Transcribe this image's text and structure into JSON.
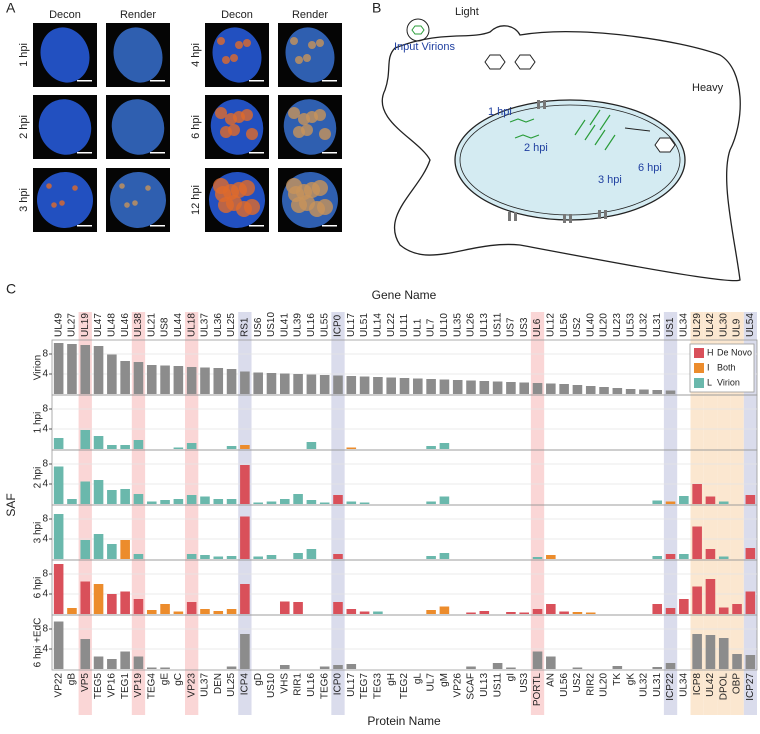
{
  "panels": {
    "a": {
      "label": "A",
      "columns": [
        "Decon",
        "Render",
        "Decon",
        "Render"
      ],
      "rows_left": [
        "1 hpi",
        "2 hpi",
        "3 hpi"
      ],
      "rows_right": [
        "4 hpi",
        "6 hpi",
        "12 hpi"
      ]
    },
    "b": {
      "label": "B",
      "light": "Light",
      "input": "Input Virions",
      "heavy": "Heavy",
      "stages": [
        "1 hpi",
        "2 hpi",
        "3 hpi",
        "6 hpi"
      ]
    }
  },
  "chart_data": {
    "type": "bar",
    "panel_label": "C",
    "top_axis_label": "Gene Name",
    "xlabel": "Protein Name",
    "ylabel": "SAF",
    "genes": [
      "UL49",
      "UL27",
      "UL19",
      "UL47",
      "UL48",
      "UL46",
      "UL38",
      "UL21",
      "US8",
      "UL44",
      "UL18",
      "UL37",
      "UL36",
      "UL25",
      "RS1",
      "US6",
      "US10",
      "UL41",
      "UL39",
      "UL16",
      "UL55",
      "ICP0",
      "UL17",
      "UL51",
      "UL14",
      "UL22",
      "UL11",
      "UL1",
      "UL7",
      "UL10",
      "UL35",
      "UL26",
      "UL13",
      "US11",
      "US7",
      "US3",
      "UL6",
      "UL12",
      "UL56",
      "US2",
      "UL40",
      "UL20",
      "UL23",
      "UL53",
      "UL32",
      "UL31",
      "US1",
      "UL34",
      "UL29",
      "UL42",
      "UL30",
      "UL9",
      "UL54"
    ],
    "categories": [
      "VP22",
      "gB",
      "VP5",
      "TEG5",
      "VP16",
      "TEG1",
      "VP19",
      "TEG4",
      "gE",
      "gC",
      "VP23",
      "UL37",
      "DEN",
      "UL25",
      "ICP4",
      "gD",
      "US10",
      "VHS",
      "RIR1",
      "UL16",
      "TEG6",
      "ICP0",
      "UL17",
      "TEG7",
      "TEG3",
      "gH",
      "TEG2",
      "gL",
      "UL7",
      "gM",
      "VP26",
      "SCAF",
      "UL13",
      "US11",
      "gI",
      "US3",
      "PORTL",
      "AN",
      "UL56",
      "US2",
      "RIR2",
      "UL20",
      "TK",
      "gK",
      "UL32",
      "UL31",
      "ICP22",
      "UL34",
      "ICP8",
      "UL42",
      "DPOL",
      "OBP",
      "ICP27"
    ],
    "ylim": [
      0,
      10.6
    ],
    "yticks": [
      4,
      8
    ],
    "grid": true,
    "legend": {
      "position": "upper right",
      "entries": [
        {
          "key": "H",
          "name": "De Novo",
          "color": "#d9505a"
        },
        {
          "key": "I",
          "name": "Both",
          "color": "#ec8c2c"
        },
        {
          "key": "L",
          "name": "Virion",
          "color": "#6ab8ac"
        }
      ]
    },
    "highlights": [
      {
        "color": "#fad6d6",
        "columns": [
          2,
          6,
          10,
          36
        ]
      },
      {
        "color": "#dadcec",
        "columns": [
          14,
          21,
          46,
          52
        ]
      },
      {
        "color": "#fbe7d0",
        "columns": [
          48,
          49,
          50,
          51
        ]
      }
    ],
    "rows": [
      {
        "name": "Virion",
        "color": "#8c8c8c",
        "values": [
          10.2,
          10,
          9.8,
          9.6,
          7.9,
          6.6,
          6.4,
          5.8,
          5.7,
          5.6,
          5.4,
          5.3,
          5.2,
          5,
          4.5,
          4.3,
          4.2,
          4.1,
          4,
          3.9,
          3.8,
          3.7,
          3.6,
          3.5,
          3.4,
          3.3,
          3.2,
          3.1,
          3,
          2.9,
          2.8,
          2.7,
          2.6,
          2.5,
          2.4,
          2.3,
          2.2,
          2.1,
          2,
          1.8,
          1.6,
          1.4,
          1.2,
          1,
          0.9,
          0.8,
          0.7,
          0,
          0,
          0,
          0,
          0,
          0
        ]
      },
      {
        "name": "1 hpi",
        "values": [
          2.2,
          0,
          3.8,
          2.6,
          0.8,
          0.8,
          1.8,
          0,
          0,
          0.3,
          1.2,
          0,
          0,
          0.6,
          0.8,
          0,
          0,
          0,
          0,
          1.4,
          0,
          0,
          0.3,
          0,
          0,
          0,
          0,
          0,
          0.6,
          1.2,
          0,
          0,
          0,
          0,
          0,
          0,
          0,
          0,
          0,
          0,
          0,
          0,
          0,
          0,
          0,
          0,
          0,
          0,
          0,
          0,
          0,
          0,
          0
        ],
        "classes": [
          "L",
          "L",
          "L",
          "L",
          "L",
          "L",
          "L",
          "L",
          "L",
          "L",
          "L",
          "L",
          "L",
          "L",
          "I",
          "L",
          "L",
          "L",
          "L",
          "L",
          "L",
          "L",
          "I",
          "L",
          "L",
          "L",
          "L",
          "L",
          "L",
          "L",
          "L",
          "L",
          "L",
          "L",
          "L",
          "L",
          "L",
          "L",
          "L",
          "L",
          "L",
          "L",
          "L",
          "L",
          "L",
          "L",
          "L",
          "L",
          "L",
          "L",
          "L",
          "L",
          "L"
        ]
      },
      {
        "name": "2 hpi",
        "values": [
          7.5,
          1,
          4.5,
          4.8,
          2.8,
          3,
          2,
          0.5,
          0.8,
          1,
          1.8,
          1.5,
          1,
          1,
          7.8,
          0.3,
          0.5,
          1,
          2,
          0.8,
          0.3,
          1.8,
          0.5,
          0.3,
          0,
          0,
          0,
          0,
          0.5,
          1.5,
          0,
          0,
          0,
          0,
          0,
          0,
          0,
          0,
          0,
          0,
          0,
          0,
          0,
          0,
          0,
          0.7,
          0.5,
          1.6,
          4,
          1.5,
          0.5,
          0,
          1.8
        ],
        "classes": [
          "L",
          "L",
          "L",
          "L",
          "L",
          "L",
          "L",
          "L",
          "L",
          "L",
          "L",
          "L",
          "L",
          "L",
          "H",
          "L",
          "L",
          "L",
          "L",
          "L",
          "L",
          "H",
          "L",
          "L",
          "L",
          "L",
          "L",
          "L",
          "L",
          "L",
          "L",
          "L",
          "L",
          "L",
          "L",
          "L",
          "L",
          "L",
          "L",
          "L",
          "L",
          "L",
          "L",
          "L",
          "L",
          "L",
          "I",
          "L",
          "H",
          "H",
          "L",
          "L",
          "H"
        ]
      },
      {
        "name": "3 hpi",
        "values": [
          9,
          0,
          3.8,
          5,
          3,
          3.8,
          1,
          0,
          0,
          0,
          1,
          0.8,
          0.5,
          0.6,
          8.5,
          0.5,
          0.8,
          0,
          1.2,
          2,
          0,
          1,
          0,
          0,
          0,
          0,
          0,
          0,
          0.6,
          1.2,
          0,
          0,
          0,
          0,
          0,
          0,
          0.4,
          0.8,
          0,
          0,
          0,
          0,
          0,
          0,
          0,
          0.6,
          1,
          1,
          6.5,
          2,
          0.5,
          0,
          2.2
        ],
        "classes": [
          "L",
          "L",
          "L",
          "L",
          "L",
          "I",
          "L",
          "L",
          "L",
          "L",
          "L",
          "L",
          "L",
          "L",
          "H",
          "L",
          "L",
          "L",
          "L",
          "L",
          "L",
          "H",
          "L",
          "L",
          "L",
          "L",
          "L",
          "L",
          "L",
          "L",
          "L",
          "L",
          "L",
          "L",
          "L",
          "L",
          "L",
          "I",
          "L",
          "L",
          "L",
          "L",
          "L",
          "L",
          "L",
          "L",
          "H",
          "L",
          "H",
          "H",
          "L",
          "L",
          "H"
        ]
      },
      {
        "name": "6 hpi",
        "values": [
          10,
          1.2,
          6.5,
          6,
          4,
          4.5,
          3,
          0.8,
          2,
          0.5,
          2.4,
          1,
          0.6,
          1,
          6,
          0,
          0,
          2.5,
          2.4,
          0,
          0,
          2.4,
          1,
          0.5,
          0.5,
          0,
          0,
          0,
          0.8,
          1.5,
          0,
          0.3,
          0.6,
          0,
          0.4,
          0.3,
          1,
          2,
          0.5,
          0.4,
          0.3,
          0,
          0,
          0,
          0,
          2,
          1.2,
          3,
          5.5,
          7,
          1.3,
          2,
          4.5
        ],
        "classes": [
          "H",
          "I",
          "H",
          "I",
          "H",
          "H",
          "H",
          "I",
          "I",
          "I",
          "H",
          "I",
          "I",
          "I",
          "H",
          "H",
          "H",
          "H",
          "H",
          "H",
          "H",
          "H",
          "H",
          "H",
          "L",
          "H",
          "H",
          "H",
          "I",
          "I",
          "H",
          "H",
          "H",
          "H",
          "H",
          "H",
          "H",
          "H",
          "H",
          "I",
          "I",
          "H",
          "H",
          "H",
          "H",
          "H",
          "H",
          "H",
          "H",
          "H",
          "H",
          "H",
          "H"
        ]
      },
      {
        "name": "6 hpi +EdC",
        "color": "#8c8c8c",
        "values": [
          9.5,
          0,
          6,
          2.5,
          2,
          3.5,
          2.5,
          0.3,
          0.3,
          0,
          0,
          0,
          0,
          0.5,
          7,
          0,
          0,
          0.8,
          0,
          0,
          0.5,
          0.8,
          1,
          0,
          0,
          0,
          0,
          0,
          0,
          0,
          0,
          0.5,
          0,
          1.2,
          0.3,
          0,
          3.5,
          2.5,
          0,
          0.3,
          0,
          0,
          0.6,
          0,
          0,
          0.4,
          1.2,
          0,
          7,
          6.8,
          6.2,
          3,
          2.8
        ]
      }
    ]
  }
}
